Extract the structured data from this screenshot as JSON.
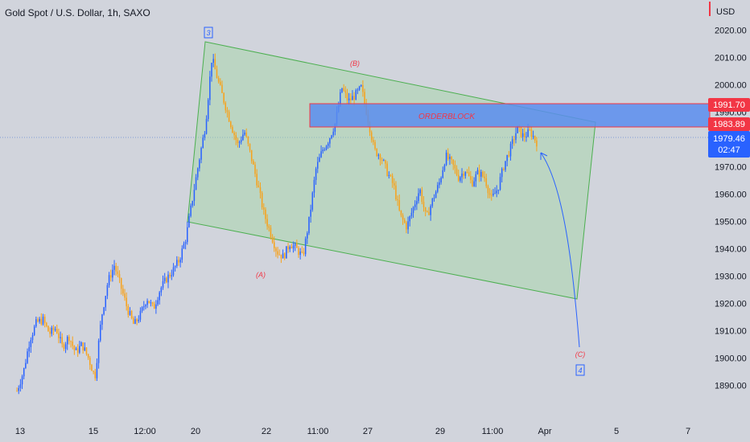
{
  "header": {
    "symbol_title": "Gold Spot / U.S. Dollar, 1h, SAXO",
    "currency": "USD"
  },
  "colors": {
    "background": "#d1d4dc",
    "candle_up": "#2962ff",
    "candle_down": "#f7a21b",
    "channel_fill": "#a5d6a7",
    "channel_stroke": "#4caf50",
    "orderblock_fill": "#5b8dee",
    "orderblock_stroke": "#f23645",
    "wave_label": "#f23645",
    "wave_count": "#2962ff",
    "arrow": "#2962ff",
    "price_line": "#7f9bd6"
  },
  "chart_data": {
    "type": "candlestick",
    "title": "Gold Spot / U.S. Dollar, 1h, SAXO",
    "x_ticks": [
      "13",
      "15",
      "12:00",
      "20",
      "22",
      "11:00",
      "27",
      "29",
      "11:00",
      "Apr",
      "5",
      "7"
    ],
    "y_ticks": [
      "2020.00",
      "2010.00",
      "2000.00",
      "1990.00",
      "1980.00",
      "1970.00",
      "1960.00",
      "1950.00",
      "1940.00",
      "1930.00",
      "1920.00",
      "1910.00",
      "1900.00",
      "1890.00"
    ],
    "ylim": [
      1884,
      2024
    ],
    "price_labels": {
      "orderblock_top": "1991.70",
      "orderblock_bottom": "1983.89",
      "last_price": "1979.46",
      "countdown": "02:47"
    },
    "close_path": [
      1888,
      1895,
      1907,
      1913,
      1914,
      1909,
      1911,
      1904,
      1908,
      1902,
      1905,
      1900,
      1893,
      1915,
      1928,
      1934,
      1926,
      1918,
      1912,
      1916,
      1922,
      1918,
      1925,
      1929,
      1932,
      1936,
      1944,
      1958,
      1972,
      1985,
      2010,
      2001,
      1993,
      1985,
      1978,
      1983,
      1974,
      1964,
      1953,
      1946,
      1939,
      1937,
      1942,
      1940,
      1937,
      1951,
      1969,
      1976,
      1980,
      1986,
      1999,
      1994,
      1996,
      1999,
      1988,
      1976,
      1974,
      1968,
      1963,
      1952,
      1948,
      1955,
      1962,
      1951,
      1958,
      1964,
      1974,
      1971,
      1966,
      1969,
      1964,
      1968,
      1966,
      1958,
      1962,
      1971,
      1977,
      1984,
      1981,
      1983,
      1979
    ],
    "annotations": {
      "orderblock_label": "ORDERBLOCK",
      "wave_a": "(A)",
      "wave_b": "(B)",
      "wave_c": "(C)",
      "count_3": "3",
      "count_4": "4"
    }
  }
}
